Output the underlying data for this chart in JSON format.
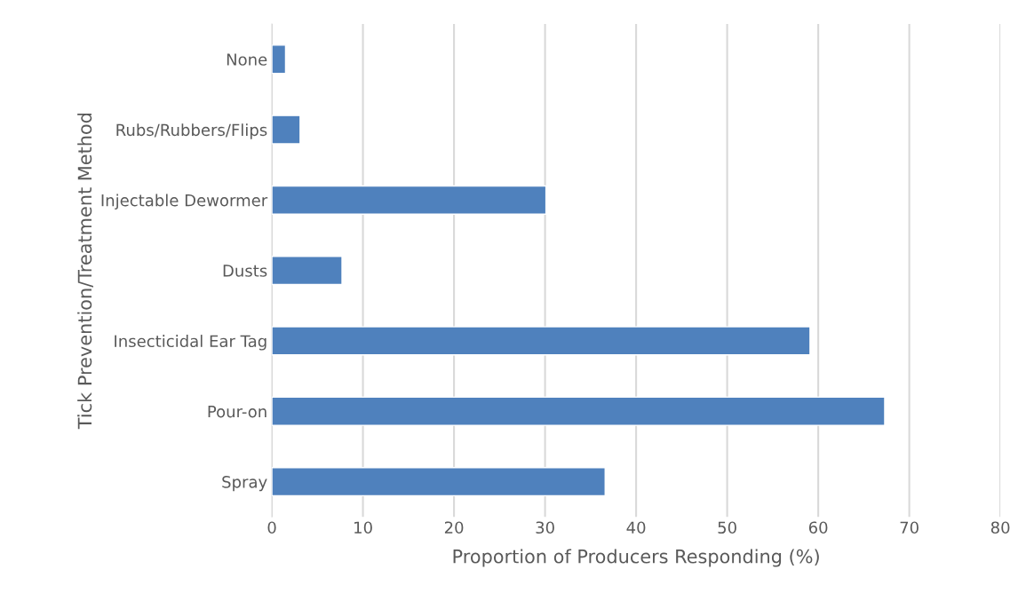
{
  "chart_data": {
    "type": "bar",
    "orientation": "horizontal",
    "xlabel": "Proportion of Producers Responding (%)",
    "ylabel": "Tick Prevention/Treatment Method",
    "categories": [
      "None",
      "Rubs/Rubbers/Flips",
      "Injectable Dewormer",
      "Dusts",
      "Insecticidal Ear Tag",
      "Pour-on",
      "Spray"
    ],
    "values": [
      1.5,
      3.1,
      30.1,
      7.7,
      59.1,
      67.3,
      36.6
    ],
    "color": "#4f81bd",
    "xlim": [
      0,
      80
    ],
    "xticks": [
      0,
      10,
      20,
      30,
      40,
      50,
      60,
      70,
      80
    ],
    "grid": "x"
  }
}
